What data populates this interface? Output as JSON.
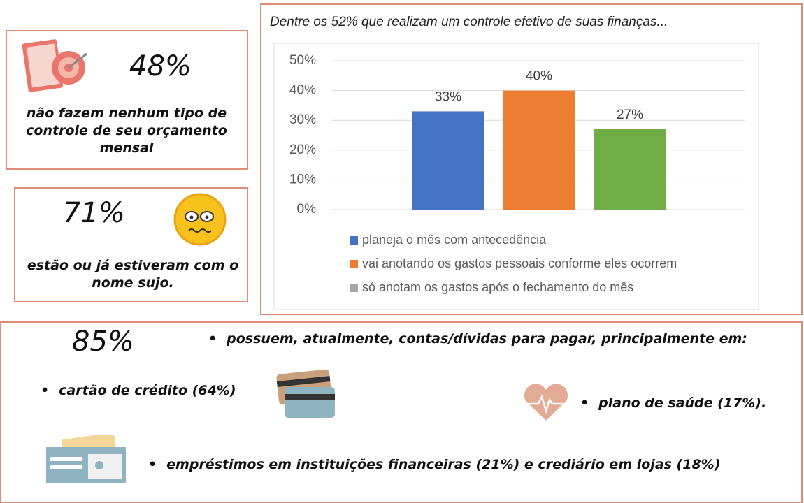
{
  "stats": [
    {
      "value_text": "48%",
      "text": "não fazem nenhum tipo de controle de seu orçamento mensal"
    },
    {
      "value_text": "71%",
      "text": "estão ou já estiveram com o nome sujo."
    }
  ],
  "chart_data": {
    "type": "bar",
    "title": "Dentre os 52% que realizam um controle efetivo de suas finanças...",
    "series": [
      {
        "name": "planeja o mês com antecedência",
        "color": "#4472c4",
        "legend_color": "#4472c4",
        "values": [
          33
        ],
        "value_labels": [
          "33%"
        ]
      },
      {
        "name": "vai anotando os gastos pessoais conforme eles ocorrem",
        "color": "#ed7d31",
        "legend_color": "#ed7d31",
        "values": [
          40
        ],
        "value_labels": [
          "40%"
        ]
      },
      {
        "name": "só anotam os gastos após o fechamento do mês",
        "color": "#70ad47",
        "legend_color": "#a5a5a5",
        "values": [
          27
        ],
        "value_labels": [
          "27%"
        ]
      }
    ],
    "ylim": [
      0,
      50
    ],
    "yticks": [
      {
        "value": 0,
        "label": "0%"
      },
      {
        "value": 10,
        "label": "10%"
      },
      {
        "value": 20,
        "label": "20%"
      },
      {
        "value": 30,
        "label": "30%"
      },
      {
        "value": 40,
        "label": "40%"
      },
      {
        "value": 50,
        "label": "50%"
      }
    ],
    "grid": true
  },
  "debts": {
    "value_text": "85%",
    "text": "possuem, atualmente, contas/dívidas para pagar, principalmente em:",
    "items": [
      "cartão de crédito (64%)",
      "plano de saúde (17%).",
      "empréstimos em instituições financeiras (21%) e crediário em lojas (18%)"
    ]
  }
}
